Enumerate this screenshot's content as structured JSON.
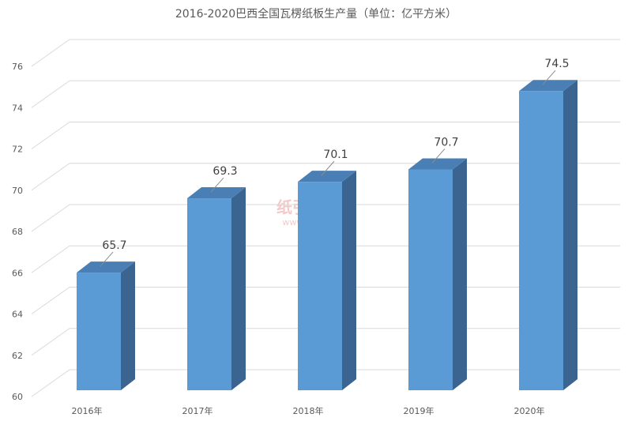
{
  "chart_data": {
    "type": "bar3d",
    "title": "2016-2020巴西全国瓦楞纸板生产量（单位：亿平方米）",
    "categories": [
      "2016年",
      "2017年",
      "2018年",
      "2019年",
      "2020年"
    ],
    "values": [
      65.7,
      69.3,
      70.1,
      70.7,
      74.5
    ],
    "color": "#5b9bd5",
    "ylim": [
      60,
      76
    ],
    "yticks": [
      60,
      62,
      64,
      66,
      68,
      70,
      72,
      74,
      76
    ],
    "grid": true,
    "watermark": [
      "纸引未来网",
      "www.51zyw.net"
    ]
  }
}
